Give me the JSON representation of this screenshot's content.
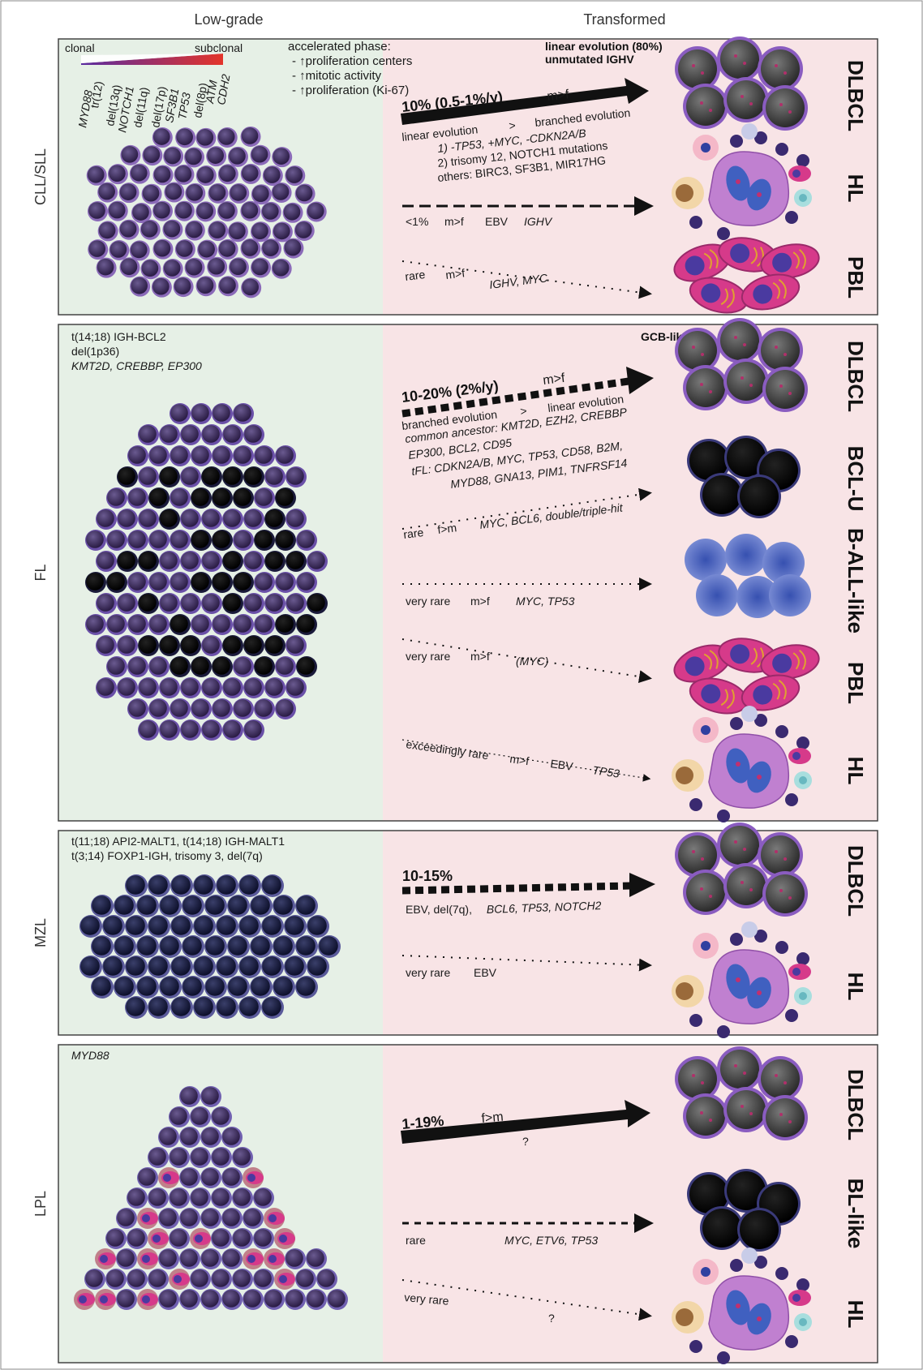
{
  "headers": {
    "low_grade": "Low-grade",
    "transformed": "Transformed"
  },
  "colors": {
    "low_bg": "#e6f0e6",
    "tr_bg": "#f8e4e6",
    "cell_dark": "#3b2a57",
    "cell_rim": "#7a5aa8",
    "plasma": "#d63a8a",
    "dlbcl": "#4a4a4a"
  },
  "cll": {
    "label": "CLL/SLL",
    "clonal": "clonal",
    "subclonal": "subclonal",
    "lesions": [
      "MYD88",
      "tr(12)",
      "del(13q)",
      "NOTCH1",
      "del(11q)",
      "del(17p)",
      "SF3B1",
      "TP53",
      "del(8p)",
      "ATM",
      "CDH2"
    ],
    "accel_title": "accelerated phase:",
    "accel_items": [
      "- ↑proliferation centers",
      "- ↑mitotic activity",
      "- ↑proliferation (Ki-67)"
    ],
    "note1": "linear evolution (80%)",
    "note2": "unmutated IGHV",
    "dlbcl_pct": "10% (0.5-1%/y)",
    "dlbcl_sex": "m>f",
    "evo1": "branched evolution",
    "evo_cmp": ">",
    "evo2": "linear evolution",
    "line1": "1) -TP53, +MYC, -CDKN2A/B",
    "line2": "2) trisomy 12, NOTCH1 mutations",
    "line3": "others: BIRC3, SF3B1, MIR17HG",
    "hl_freq": "<1%",
    "hl_sex": "m>f",
    "hl_ebv": "EBV",
    "hl_gene": "IGHV",
    "pbl_freq": "rare",
    "pbl_sex": "m>f",
    "pbl_gene": "IGHV, MYC",
    "dx": [
      "DLBCL",
      "HL",
      "PBL"
    ]
  },
  "fl": {
    "label": "FL",
    "lesions": [
      "t(14;18) IGH-BCL2",
      "del(1p36)",
      "KMT2D, CREBBP, EP300"
    ],
    "note": "GCB-like",
    "dlbcl_pct": "10-20% (2%/y)",
    "dlbcl_sex": "m>f",
    "evo1": "branched evolution",
    "evo_cmp": ">",
    "evo2": "linear evolution",
    "line1": "common ancestor: KMT2D, EZH2, CREBBP",
    "line2": "EP300, BCL2, CD95",
    "line3": "tFL: CDKN2A/B, MYC, TP53, CD58, B2M,",
    "line4": "MYD88, GNA13, PIM1, TNFRSF14",
    "bclu_freq": "rare",
    "bclu_sex": "f>m",
    "bclu_gene": "MYC, BCL6, double/triple-hit",
    "ball_freq": "very rare",
    "ball_sex": "m>f",
    "ball_gene": "MYC, TP53",
    "pbl_freq": "very rare",
    "pbl_sex": "m>f",
    "pbl_gene": "(MYC)",
    "hl_freq": "exceedingly rare",
    "hl_sex": "m>f",
    "hl_ebv": "EBV",
    "hl_gene": "TP53",
    "dx": [
      "DLBCL",
      "BCL-U",
      "B-ALL-like",
      "PBL",
      "HL"
    ]
  },
  "mzl": {
    "label": "MZL",
    "lesion1": "t(11;18) API2-MALT1, t(14;18) IGH-MALT1",
    "lesion2": "t(3;14) FOXP1-IGH, trisomy 3, del(7q)",
    "dlbcl_pct": "10-15%",
    "dlbcl_genes_a": "EBV, del(7q),",
    "dlbcl_genes_b": "BCL6, TP53, NOTCH2",
    "hl_freq": "very rare",
    "hl_ebv": "EBV",
    "dx": [
      "DLBCL",
      "HL"
    ]
  },
  "lpl": {
    "label": "LPL",
    "lesion": "MYD88",
    "dlbcl_pct": "1-19%",
    "dlbcl_sex": "f>m",
    "dlbcl_q": "?",
    "bl_freq": "rare",
    "bl_gene": "MYC, ETV6, TP53",
    "hl_freq": "very rare",
    "hl_q": "?",
    "dx": [
      "DLBCL",
      "BL-like",
      "HL"
    ]
  }
}
